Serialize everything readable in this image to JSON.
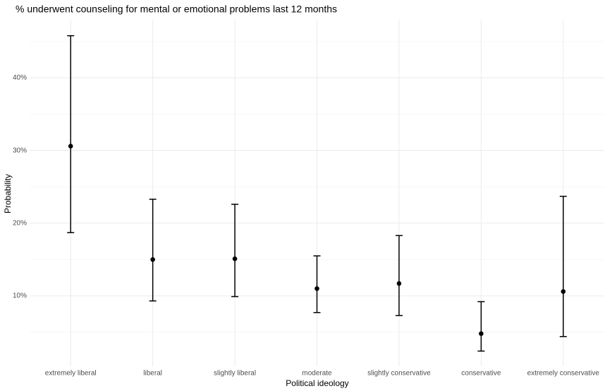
{
  "chart_data": {
    "type": "errorbar",
    "title": "% underwent counseling for mental or emotional problems last 12 months",
    "x_label": "Political ideology",
    "y_label": "Probability",
    "categories": [
      "extremely liberal",
      "liberal",
      "slightly liberal",
      "moderate",
      "slightly conservative",
      "conservative",
      "extremely conservative"
    ],
    "values": [
      30.6,
      15.0,
      15.1,
      11.0,
      11.7,
      4.8,
      10.6
    ],
    "lower": [
      18.7,
      9.3,
      9.9,
      7.7,
      7.3,
      2.4,
      4.4
    ],
    "upper": [
      45.8,
      23.3,
      22.6,
      15.5,
      18.3,
      9.2,
      23.7
    ],
    "color": "#000000",
    "ylim": [
      0.3,
      48
    ],
    "yticks": [
      {
        "value": 10,
        "label": "10%"
      },
      {
        "value": 20,
        "label": "20%"
      },
      {
        "value": 30,
        "label": "30%"
      },
      {
        "value": 40,
        "label": "40%"
      }
    ],
    "minor_yticks": [
      5,
      15,
      25,
      35,
      45
    ],
    "grid": true
  }
}
